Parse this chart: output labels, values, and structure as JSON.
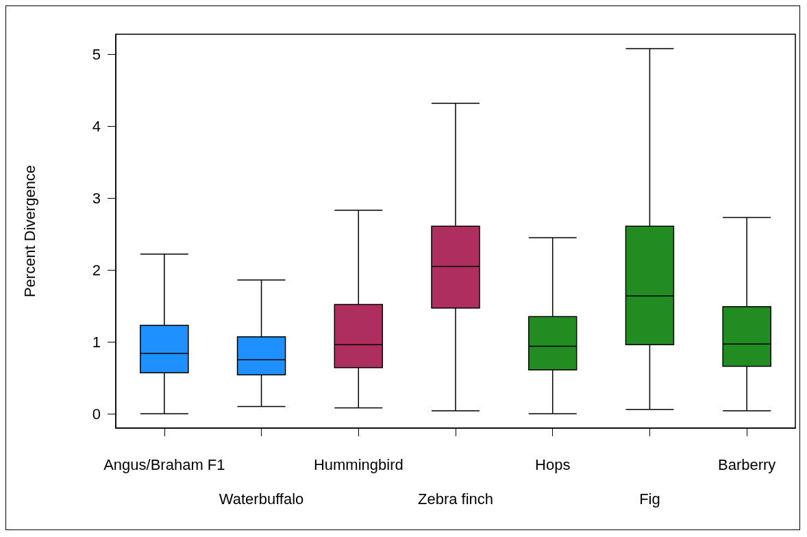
{
  "chart_data": {
    "type": "box",
    "ylabel": "Percent Divergence",
    "categories": [
      "Angus/Braham F1",
      "Waterbuffalo",
      "Hummingbird",
      "Zebra finch",
      "Hops",
      "Fig",
      "Barberry"
    ],
    "boxes": [
      {
        "low": 0,
        "q1": 0.57,
        "median": 0.84,
        "q3": 1.23,
        "high": 2.22
      },
      {
        "low": 0.1,
        "q1": 0.54,
        "median": 0.75,
        "q3": 1.07,
        "high": 1.86
      },
      {
        "low": 0.08,
        "q1": 0.64,
        "median": 0.96,
        "q3": 1.52,
        "high": 2.83
      },
      {
        "low": 0.04,
        "q1": 1.47,
        "median": 2.05,
        "q3": 2.61,
        "high": 4.32
      },
      {
        "low": 0,
        "q1": 0.61,
        "median": 0.94,
        "q3": 1.35,
        "high": 2.45
      },
      {
        "low": 0.06,
        "q1": 0.96,
        "median": 1.64,
        "q3": 2.61,
        "high": 5.08
      },
      {
        "low": 0.04,
        "q1": 0.66,
        "median": 0.97,
        "q3": 1.49,
        "high": 2.73
      }
    ],
    "colors": [
      "#1e90ff",
      "#1e90ff",
      "#ad2e5f",
      "#ad2e5f",
      "#228b22",
      "#228b22",
      "#228b22"
    ],
    "ylim": [
      -0.2,
      5.28
    ],
    "yticks": [
      0,
      1,
      2,
      3,
      4,
      5
    ],
    "grid": false
  }
}
